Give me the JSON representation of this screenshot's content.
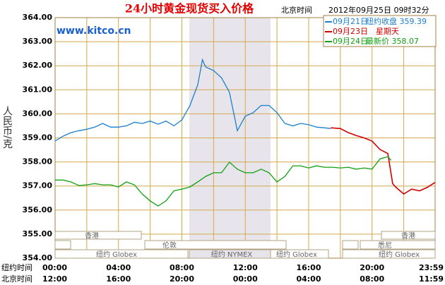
{
  "chart_data": {
    "type": "line",
    "title": "24小时黄金现货买入价格",
    "timezone_label": "北京时间",
    "timestamp": "2012年09月25日 09时32分",
    "watermark": "www.kitco.cn",
    "y_label": "人民币/克",
    "x_row_labels": [
      "纽约时间",
      "北京时间"
    ],
    "xlim": [
      0,
      23.98
    ],
    "xticks": [
      {
        "value": 0,
        "label": "00:00"
      },
      {
        "value": 4,
        "label": "04:00"
      },
      {
        "value": 8,
        "label": "08:00"
      },
      {
        "value": 12,
        "label": "12:00"
      },
      {
        "value": 16,
        "label": "16:00"
      },
      {
        "value": 20,
        "label": "20:00"
      },
      {
        "value": 23.98,
        "label": "23:59"
      }
    ],
    "x2ticks": [
      {
        "value": 0,
        "label": "12:00"
      },
      {
        "value": 4,
        "label": "16:00"
      },
      {
        "value": 8,
        "label": "20:00"
      },
      {
        "value": 12,
        "label": "00:00"
      },
      {
        "value": 16,
        "label": "04:00"
      },
      {
        "value": 20,
        "label": "08:00"
      },
      {
        "value": 23.98,
        "label": "11:59"
      }
    ],
    "xminor": [
      2,
      6,
      10,
      14,
      18,
      22
    ],
    "ylim": [
      354,
      364
    ],
    "yticks": [
      {
        "value": 354,
        "label": "354.00"
      },
      {
        "value": 355,
        "label": "355.00"
      },
      {
        "value": 356,
        "label": "356.00"
      },
      {
        "value": 357,
        "label": "357.00"
      },
      {
        "value": 358,
        "label": "358.00"
      },
      {
        "value": 359,
        "label": "359.00"
      },
      {
        "value": 360,
        "label": "360.00"
      },
      {
        "value": 361,
        "label": "361.00"
      },
      {
        "value": 362,
        "label": "362.00"
      },
      {
        "value": 363,
        "label": "363.00"
      },
      {
        "value": 364,
        "label": "364.00"
      }
    ],
    "grid": true,
    "sessions": [
      "香港",
      "香港",
      "伦敦",
      "悉尼",
      "纽约 Globex",
      "纽约 NYMEX",
      "纽约 Globex",
      "纽约 Globex"
    ],
    "series": [
      {
        "name": "09月21日",
        "note": "纽约收盘 359.39",
        "color": "#1a7fd0",
        "x": [
          0,
          0.5,
          1,
          1.5,
          2,
          2.5,
          3,
          3.5,
          4,
          4.5,
          5,
          5.5,
          6,
          6.5,
          7,
          7.5,
          8,
          8.5,
          9,
          9.3,
          9.5,
          10,
          10.5,
          11,
          11.5,
          12,
          12.5,
          13,
          13.5,
          14,
          14.5,
          15,
          15.5,
          16,
          16.5,
          17,
          17.4
        ],
        "values": [
          358.87,
          359.07,
          359.22,
          359.3,
          359.36,
          359.45,
          359.6,
          359.45,
          359.45,
          359.5,
          359.65,
          359.6,
          359.7,
          359.57,
          359.7,
          359.5,
          359.75,
          360.33,
          361.2,
          362.25,
          361.95,
          361.8,
          361.5,
          360.9,
          359.3,
          359.9,
          360.05,
          360.35,
          360.35,
          360.05,
          359.6,
          359.5,
          359.6,
          359.55,
          359.45,
          359.42,
          359.39
        ]
      },
      {
        "name": "09月23日",
        "note": "星期天",
        "color": "#d00000",
        "x": [
          17.4,
          18,
          18.5,
          19,
          19.5,
          20,
          20.5,
          21,
          21.3,
          21.5,
          22,
          22.5,
          23,
          23.5,
          23.98
        ],
        "values": [
          359.42,
          359.39,
          359.22,
          359.1,
          359.0,
          358.87,
          358.52,
          358.35,
          357.1,
          356.95,
          356.67,
          356.87,
          356.8,
          356.95,
          357.15
        ]
      },
      {
        "name": "09月24日",
        "note": "最新价 358.07",
        "color": "#10a010",
        "x": [
          0,
          0.5,
          1,
          1.5,
          2,
          2.5,
          3,
          3.5,
          4,
          4.5,
          5,
          5.5,
          6,
          6.5,
          7,
          7.5,
          8,
          8.5,
          9,
          9.5,
          10,
          10.5,
          11,
          11.5,
          12,
          12.5,
          13,
          13.5,
          14,
          14.5,
          15,
          15.5,
          16,
          16.5,
          17,
          17.5,
          18,
          18.5,
          19,
          19.5,
          20,
          20.5,
          21,
          21.2
        ],
        "values": [
          357.25,
          357.25,
          357.17,
          357.02,
          357.05,
          357.1,
          357.05,
          357.05,
          356.96,
          357.17,
          357.05,
          356.67,
          356.38,
          356.17,
          356.38,
          356.8,
          356.87,
          356.96,
          357.17,
          357.4,
          357.55,
          357.55,
          357.99,
          357.7,
          357.55,
          357.55,
          357.7,
          357.55,
          357.17,
          357.4,
          357.84,
          357.84,
          357.75,
          357.84,
          357.78,
          357.78,
          357.75,
          357.78,
          357.7,
          357.75,
          357.7,
          358.13,
          358.22,
          358.07
        ]
      }
    ]
  }
}
